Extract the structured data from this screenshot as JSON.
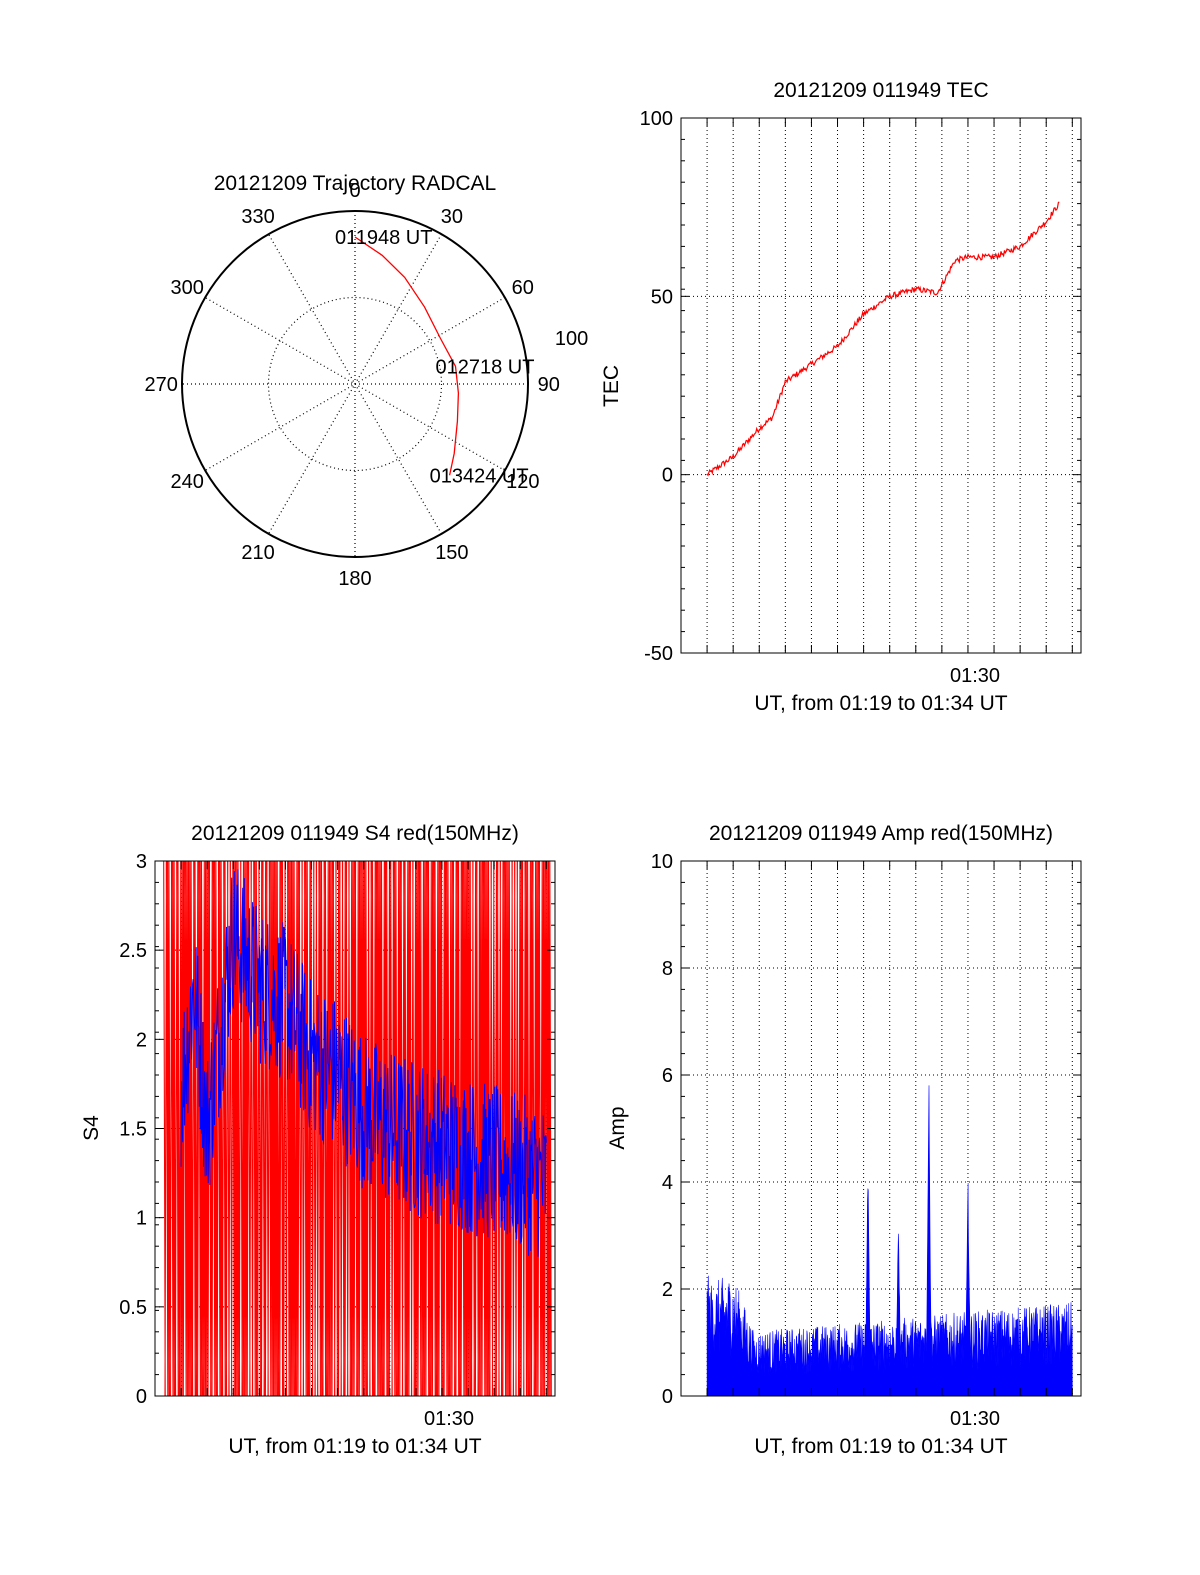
{
  "colors": {
    "red": "#ff0000",
    "blue": "#0000ff",
    "axis": "#000000",
    "grid": "#000000",
    "background": "#ffffff"
  },
  "chart_data": [
    {
      "id": "polar",
      "type": "scatter",
      "title": "20121209 Trajectory RADCAL",
      "projection": "polar",
      "radius_max": 100,
      "ring_label": "100",
      "angle_labels": [
        "0",
        "30",
        "60",
        "90",
        "120",
        "150",
        "180",
        "210",
        "240",
        "270",
        "300",
        "330"
      ],
      "grid": true,
      "series": [
        {
          "color": "#ff0000",
          "points": [
            {
              "azimuth": 0,
              "distance": 85
            },
            {
              "azimuth": 12,
              "distance": 76
            },
            {
              "azimuth": 25,
              "distance": 68
            },
            {
              "azimuth": 42,
              "distance": 60
            },
            {
              "azimuth": 62,
              "distance": 56
            },
            {
              "azimuth": 80,
              "distance": 59
            },
            {
              "azimuth": 95,
              "distance": 60
            },
            {
              "azimuth": 110,
              "distance": 63
            },
            {
              "azimuth": 125,
              "distance": 70
            },
            {
              "azimuth": 134,
              "distance": 76
            }
          ]
        }
      ],
      "annotations": [
        {
          "text": "011948 UT",
          "azimuth": 0,
          "distance": 85
        },
        {
          "text": "012718 UT",
          "azimuth": 80,
          "distance": 59
        },
        {
          "text": "013424 UT",
          "azimuth": 134,
          "distance": 76
        }
      ]
    },
    {
      "id": "tec",
      "type": "line",
      "title": "20121209 011949 TEC",
      "xlabel": "UT, from 01:19 to 01:34 UT",
      "ylabel": "TEC",
      "xtick_labels": [
        "01:30"
      ],
      "ytick_labels": [
        "100",
        "50",
        "0",
        "-50"
      ],
      "ylim": [
        -50,
        100
      ],
      "grid": true,
      "series": [
        {
          "color": "#ff0000",
          "x": [
            "01:20:00",
            "01:21:00",
            "01:22:00",
            "01:22:30",
            "01:23:00",
            "01:24:00",
            "01:25:00",
            "01:26:00",
            "01:27:00",
            "01:28:00",
            "01:28:50",
            "01:29:30",
            "01:30:00",
            "01:31:00",
            "01:32:00",
            "01:33:00",
            "01:33:30"
          ],
          "values": [
            0,
            5,
            13,
            16,
            26,
            31,
            36,
            45,
            50,
            52,
            51,
            60,
            61,
            61,
            64,
            71,
            76
          ]
        }
      ]
    },
    {
      "id": "s4",
      "type": "line",
      "title": "20121209 011949 S4 red(150MHz)",
      "xlabel": "UT, from 01:19 to 01:34 UT",
      "ylabel": "S4",
      "xtick_labels": [
        "01:30"
      ],
      "ytick_labels": [
        "3",
        "2.5",
        "2",
        "1.5",
        "1",
        "0.5",
        "0"
      ],
      "ylim": [
        0,
        3
      ],
      "grid": true,
      "series": [
        {
          "color": "#ff0000",
          "x": [
            "01:20:00",
            "01:34:00"
          ],
          "values": [
            0,
            3
          ]
        },
        {
          "color": "#0000ff",
          "x": [
            "01:20:00",
            "01:20:30",
            "01:21:00",
            "01:22:00",
            "01:23:00",
            "01:24:00",
            "01:25:00",
            "01:26:00",
            "01:27:00",
            "01:28:00",
            "01:30:00",
            "01:32:00",
            "01:34:00"
          ],
          "values": [
            1.7,
            2.3,
            1.5,
            2.6,
            2.3,
            2.2,
            1.9,
            1.8,
            1.6,
            1.5,
            1.4,
            1.3,
            1.2
          ]
        }
      ]
    },
    {
      "id": "amp",
      "type": "bar",
      "title": "20121209 011949 Amp red(150MHz)",
      "xlabel": "UT, from 01:19 to 01:34 UT",
      "ylabel": "Amp",
      "xtick_labels": [
        "01:30"
      ],
      "ytick_labels": [
        "10",
        "8",
        "6",
        "4",
        "2",
        "0"
      ],
      "ylim": [
        0,
        10
      ],
      "grid": true,
      "series": [
        {
          "color": "#0000ff",
          "x": [
            "01:20:00",
            "01:21:00",
            "01:21:50",
            "01:23:00",
            "01:25:00",
            "01:26:10",
            "01:27:20",
            "01:28:30",
            "01:29:00",
            "01:30:00",
            "01:31:00",
            "01:33:00",
            "01:34:00"
          ],
          "values": [
            2.4,
            2.6,
            1.3,
            1.2,
            1.3,
            4.6,
            3.5,
            6.5,
            1.5,
            4.2,
            1.7,
            1.8,
            1.9
          ]
        }
      ]
    }
  ]
}
